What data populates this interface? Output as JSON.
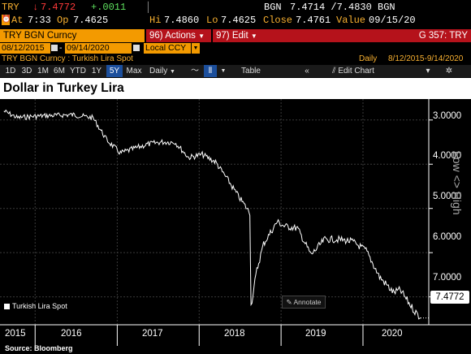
{
  "quote": {
    "ticker": "TRY",
    "last": "7.4772",
    "change": "+.0011",
    "bid_label": "BGN",
    "bid_ask": "7.4714 /7.4830",
    "ask_label": "BGN",
    "time_label": "At",
    "time": "7:33",
    "open_label": "Op",
    "open": "7.4625",
    "hi_label": "Hi",
    "hi": "7.4860",
    "lo_label": "Lo",
    "lo": "7.4625",
    "close_label": "Close",
    "close": "7.4761",
    "value_label": "Value",
    "value_date": "09/15/20"
  },
  "command_bar": {
    "security": "TRY BGN Curncy",
    "actions_num": "96)",
    "actions_label": "Actions",
    "edit_num": "97)",
    "edit_label": "Edit",
    "function_code": "G 357: TRY"
  },
  "dates": {
    "start": "08/12/2015",
    "end": "09/14/2020",
    "currency": "Local CCY"
  },
  "subtitle": {
    "security_name": "TRY BGN Curncy : Turkish Lira Spot",
    "periodicity": "Daily",
    "range": "8/12/2015-9/14/2020"
  },
  "toolbar": {
    "ranges": [
      "1D",
      "3D",
      "1M",
      "6M",
      "YTD",
      "1Y",
      "5Y",
      "Max"
    ],
    "selected": "5Y",
    "period": "Daily",
    "table_label": "Table",
    "edit_chart_label": "Edit Chart"
  },
  "chart_data": {
    "type": "line",
    "title": "Dollar in Turkey Lira",
    "series": [
      {
        "name": "Turkish Lira Spot",
        "x": [
          "2015-08",
          "2015-10",
          "2015-12",
          "2016-03",
          "2016-06",
          "2016-09",
          "2016-11",
          "2017-01",
          "2017-03",
          "2017-05",
          "2017-07",
          "2017-09",
          "2017-11",
          "2018-01",
          "2018-03",
          "2018-05",
          "2018-06",
          "2018-08",
          "2018-08-20",
          "2018-09",
          "2018-10",
          "2018-12",
          "2019-01",
          "2019-03",
          "2019-05",
          "2019-07",
          "2019-09",
          "2019-11",
          "2020-01",
          "2020-03",
          "2020-05",
          "2020-06",
          "2020-08",
          "2020-09-14"
        ],
        "values": [
          2.8,
          2.95,
          2.92,
          2.9,
          2.88,
          2.95,
          3.45,
          3.75,
          3.65,
          3.55,
          3.5,
          3.5,
          3.85,
          3.78,
          3.95,
          4.4,
          4.65,
          5.1,
          7.2,
          6.4,
          5.8,
          5.3,
          5.4,
          5.45,
          6.05,
          5.7,
          5.7,
          5.75,
          5.95,
          6.55,
          6.9,
          6.85,
          7.3,
          7.4772
        ]
      }
    ],
    "ylim": [
      2.6,
      7.5
    ],
    "y_inverted": true,
    "yticks": [
      "3.0000",
      "4.0000",
      "5.0000",
      "6.0000",
      "7.0000"
    ],
    "xticks": [
      "2015",
      "2016",
      "2017",
      "2018",
      "2019",
      "2020"
    ],
    "last_value_label": "7.4772",
    "grid": true,
    "axis_note": "Low <> High",
    "legend_position": "bottom-left"
  },
  "annotate_label": "Annotate",
  "source": "Source: Bloomberg",
  "colors": {
    "amber": "#f39a00",
    "red_bar": "#b5121b",
    "selected_blue": "#1c4f9c"
  }
}
